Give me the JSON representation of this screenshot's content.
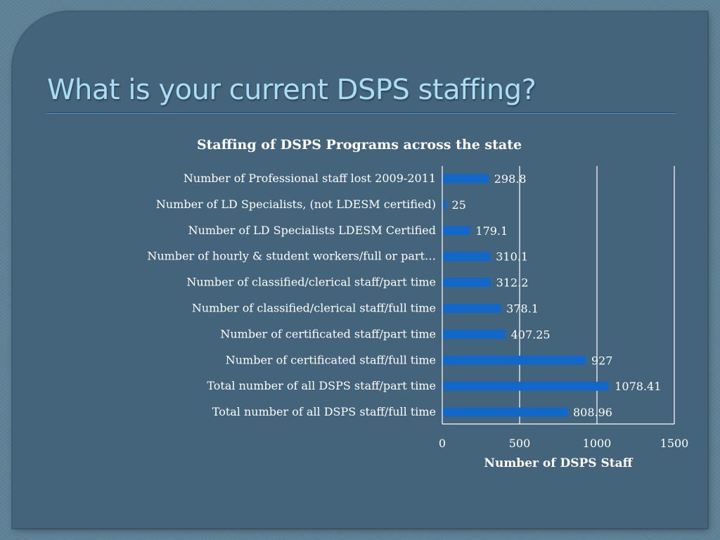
{
  "slide": {
    "title": "What is your current DSPS staffing?"
  },
  "colors": {
    "background": "#5f8296",
    "panel": "#43647a",
    "title": "#a9dcf5",
    "bar": "#1168c8",
    "text": "#ffffff",
    "gridline": "#ffffff"
  },
  "chart_data": {
    "type": "bar",
    "orientation": "horizontal",
    "title": "Staffing of DSPS Programs across the state",
    "xlabel": "Number of DSPS Staff",
    "ylabel": "",
    "xlim": [
      0,
      1500
    ],
    "x_ticks": [
      0,
      500,
      1000,
      1500
    ],
    "grid": "vertical",
    "legend": "none",
    "categories": [
      "Number of Professional staff lost 2009-2011",
      "Number of LD Specialists, (not LDESM certified)",
      "Number of LD Specialists LDESM Certified",
      "Number of hourly & student workers/full or part…",
      "Number of classified/clerical staff/part time",
      "Number of classified/clerical staff/full time",
      "Number of certificated staff/part time",
      "Number of certificated staff/full time",
      "Total number of all DSPS staff/part time",
      "Total number of all DSPS staff/full time"
    ],
    "values": [
      298.8,
      25,
      179.1,
      310.1,
      312.2,
      378.1,
      407.25,
      927,
      1078.41,
      808.96
    ],
    "data_labels": [
      "298.8",
      "25",
      "179.1",
      "310.1",
      "312.2",
      "378.1",
      "407.25",
      "927",
      "1078.41",
      "808.96"
    ]
  }
}
